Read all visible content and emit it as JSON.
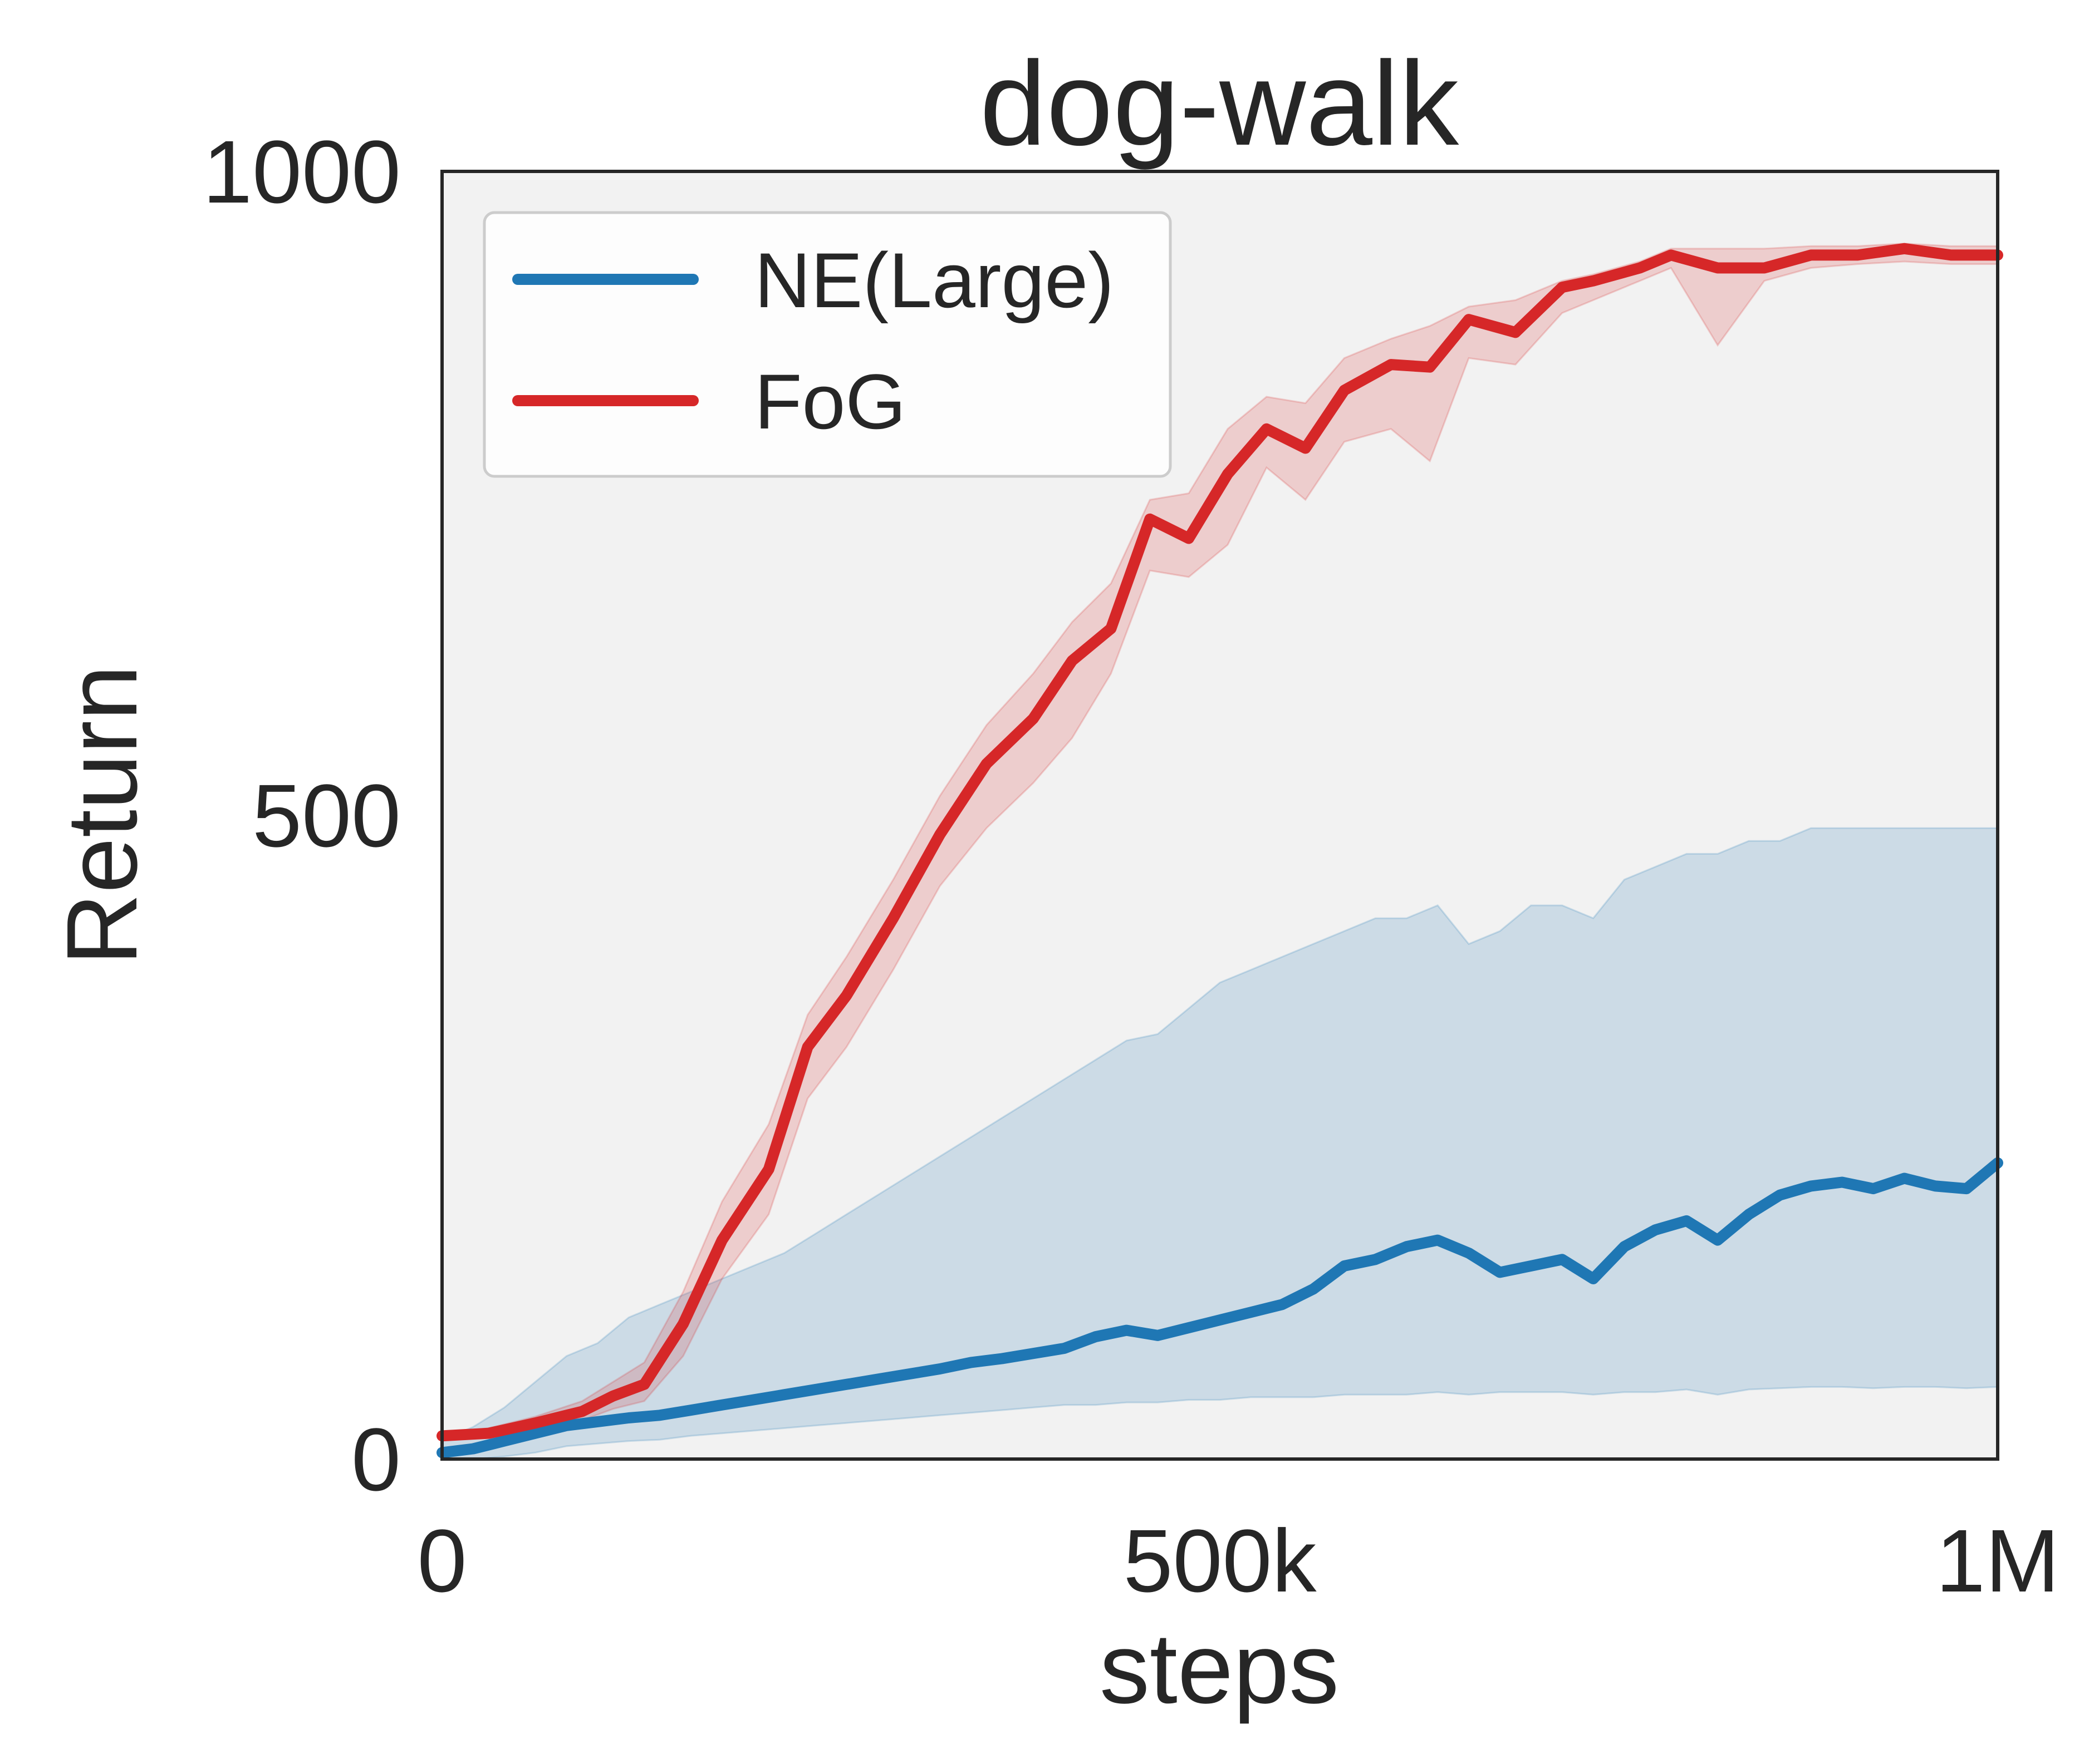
{
  "chart_data": {
    "type": "line",
    "title": "dog-walk",
    "xlabel": "steps",
    "ylabel": "Return",
    "xlim": [
      0,
      1000000
    ],
    "ylim": [
      0,
      1000
    ],
    "xticks": [
      {
        "value": 0,
        "label": "0"
      },
      {
        "value": 500000,
        "label": "500k"
      },
      {
        "value": 1000000,
        "label": "1M"
      }
    ],
    "yticks": [
      {
        "value": 0,
        "label": "0"
      },
      {
        "value": 500,
        "label": "500"
      },
      {
        "value": 1000,
        "label": "1000"
      }
    ],
    "grid": false,
    "legend_position": "top-left",
    "series": [
      {
        "name": "NE(Large)",
        "color": "#1f77b4",
        "x": [
          0,
          20000,
          40000,
          60000,
          80000,
          100000,
          120000,
          140000,
          160000,
          180000,
          200000,
          220000,
          240000,
          260000,
          280000,
          300000,
          320000,
          340000,
          360000,
          380000,
          400000,
          420000,
          440000,
          460000,
          480000,
          500000,
          520000,
          540000,
          560000,
          580000,
          600000,
          620000,
          640000,
          660000,
          680000,
          700000,
          720000,
          740000,
          760000,
          780000,
          800000,
          820000,
          840000,
          860000,
          880000,
          900000,
          920000,
          940000,
          960000,
          980000,
          1000000
        ],
        "mean": [
          5,
          8,
          14,
          20,
          26,
          29,
          32,
          34,
          38,
          42,
          46,
          50,
          54,
          58,
          62,
          66,
          70,
          75,
          78,
          82,
          86,
          95,
          100,
          96,
          102,
          108,
          114,
          120,
          132,
          150,
          155,
          165,
          170,
          160,
          145,
          150,
          155,
          140,
          165,
          178,
          185,
          170,
          190,
          205,
          212,
          215,
          210,
          218,
          212,
          210,
          230
        ],
        "upper": [
          15,
          25,
          40,
          60,
          80,
          90,
          110,
          120,
          130,
          140,
          150,
          160,
          175,
          190,
          205,
          220,
          235,
          250,
          265,
          280,
          295,
          310,
          325,
          330,
          350,
          370,
          380,
          390,
          400,
          410,
          420,
          420,
          430,
          400,
          410,
          430,
          430,
          420,
          450,
          460,
          470,
          470,
          480,
          480,
          490,
          490,
          490,
          490,
          490,
          490,
          490
        ],
        "lower": [
          0,
          0,
          2,
          5,
          10,
          12,
          14,
          15,
          18,
          20,
          22,
          24,
          26,
          28,
          30,
          32,
          34,
          36,
          38,
          40,
          42,
          42,
          44,
          44,
          46,
          46,
          48,
          48,
          48,
          50,
          50,
          50,
          52,
          50,
          52,
          52,
          52,
          50,
          52,
          52,
          54,
          50,
          54,
          55,
          56,
          56,
          55,
          56,
          56,
          55,
          56
        ]
      },
      {
        "name": "FoG",
        "color": "#d62728",
        "x": [
          0,
          30000,
          60000,
          90000,
          110000,
          130000,
          155000,
          180000,
          210000,
          235000,
          260000,
          290000,
          320000,
          350000,
          380000,
          405000,
          430000,
          455000,
          480000,
          505000,
          530000,
          555000,
          580000,
          610000,
          635000,
          660000,
          690000,
          720000,
          740000,
          770000,
          790000,
          820000,
          850000,
          880000,
          910000,
          940000,
          970000,
          1000000
        ],
        "mean": [
          18,
          20,
          28,
          37,
          49,
          58,
          105,
          170,
          225,
          320,
          360,
          420,
          485,
          540,
          575,
          620,
          645,
          730,
          715,
          765,
          800,
          785,
          830,
          850,
          848,
          885,
          875,
          910,
          915,
          925,
          935,
          925,
          925,
          935,
          935,
          940,
          935,
          935
        ],
        "upper": [
          20,
          24,
          33,
          45,
          60,
          75,
          130,
          200,
          260,
          345,
          390,
          450,
          515,
          570,
          610,
          650,
          680,
          745,
          750,
          800,
          825,
          820,
          855,
          870,
          880,
          895,
          900,
          915,
          920,
          930,
          940,
          940,
          940,
          942,
          942,
          944,
          942,
          942
        ],
        "lower": [
          16,
          17,
          24,
          30,
          39,
          45,
          80,
          140,
          190,
          280,
          320,
          380,
          445,
          490,
          525,
          560,
          610,
          690,
          685,
          710,
          770,
          745,
          790,
          800,
          775,
          855,
          850,
          890,
          900,
          915,
          925,
          865,
          915,
          925,
          928,
          930,
          928,
          928
        ]
      }
    ]
  }
}
